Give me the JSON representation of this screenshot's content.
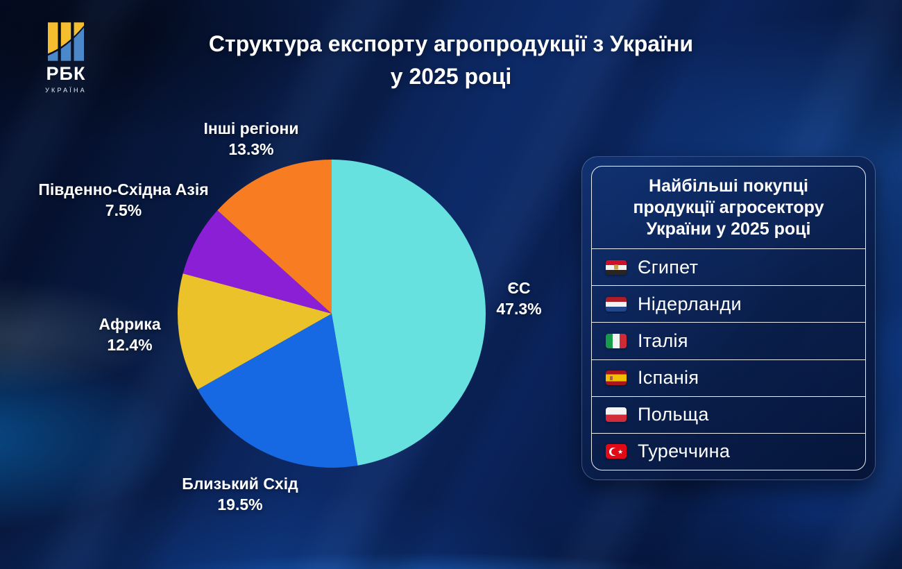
{
  "logo": {
    "brand": "РБК",
    "sub": "УКРАЇНА"
  },
  "title": {
    "line1": "Структура експорту агропродукції з України",
    "line2": "у 2025 році"
  },
  "chart_data": {
    "type": "pie",
    "title": "Структура експорту агропродукції з України у 2025 році",
    "values_unit": "%",
    "start_angle_deg": 0,
    "direction": "clockwise",
    "legend_position": "labels-around-pie",
    "slices": [
      {
        "id": "eu",
        "label": "ЄС",
        "value": 47.3,
        "pct": "47.3%",
        "color": "#67E0E0"
      },
      {
        "id": "middle-east",
        "label": "Близький Схід",
        "value": 19.5,
        "pct": "19.5%",
        "color": "#1769E3"
      },
      {
        "id": "africa",
        "label": "Африка",
        "value": 12.4,
        "pct": "12.4%",
        "color": "#ECC22B"
      },
      {
        "id": "southeast-asia",
        "label": "Південно-Східна Азія",
        "value": 7.5,
        "pct": "7.5%",
        "color": "#8B1FD6"
      },
      {
        "id": "other-regions",
        "label": "Інші регіони",
        "value": 13.3,
        "pct": "13.3%",
        "color": "#F87C22"
      }
    ]
  },
  "panel": {
    "header": "Найбільші покупці продукції агросектору України у 2025 році",
    "items": [
      {
        "name": "Єгипет",
        "flag": "egypt-flag-icon"
      },
      {
        "name": "Нідерланди",
        "flag": "netherlands-flag-icon"
      },
      {
        "name": "Італія",
        "flag": "italy-flag-icon"
      },
      {
        "name": "Іспанія",
        "flag": "spain-flag-icon"
      },
      {
        "name": "Польща",
        "flag": "poland-flag-icon"
      },
      {
        "name": "Туреччина",
        "flag": "turkey-flag-icon"
      }
    ]
  }
}
